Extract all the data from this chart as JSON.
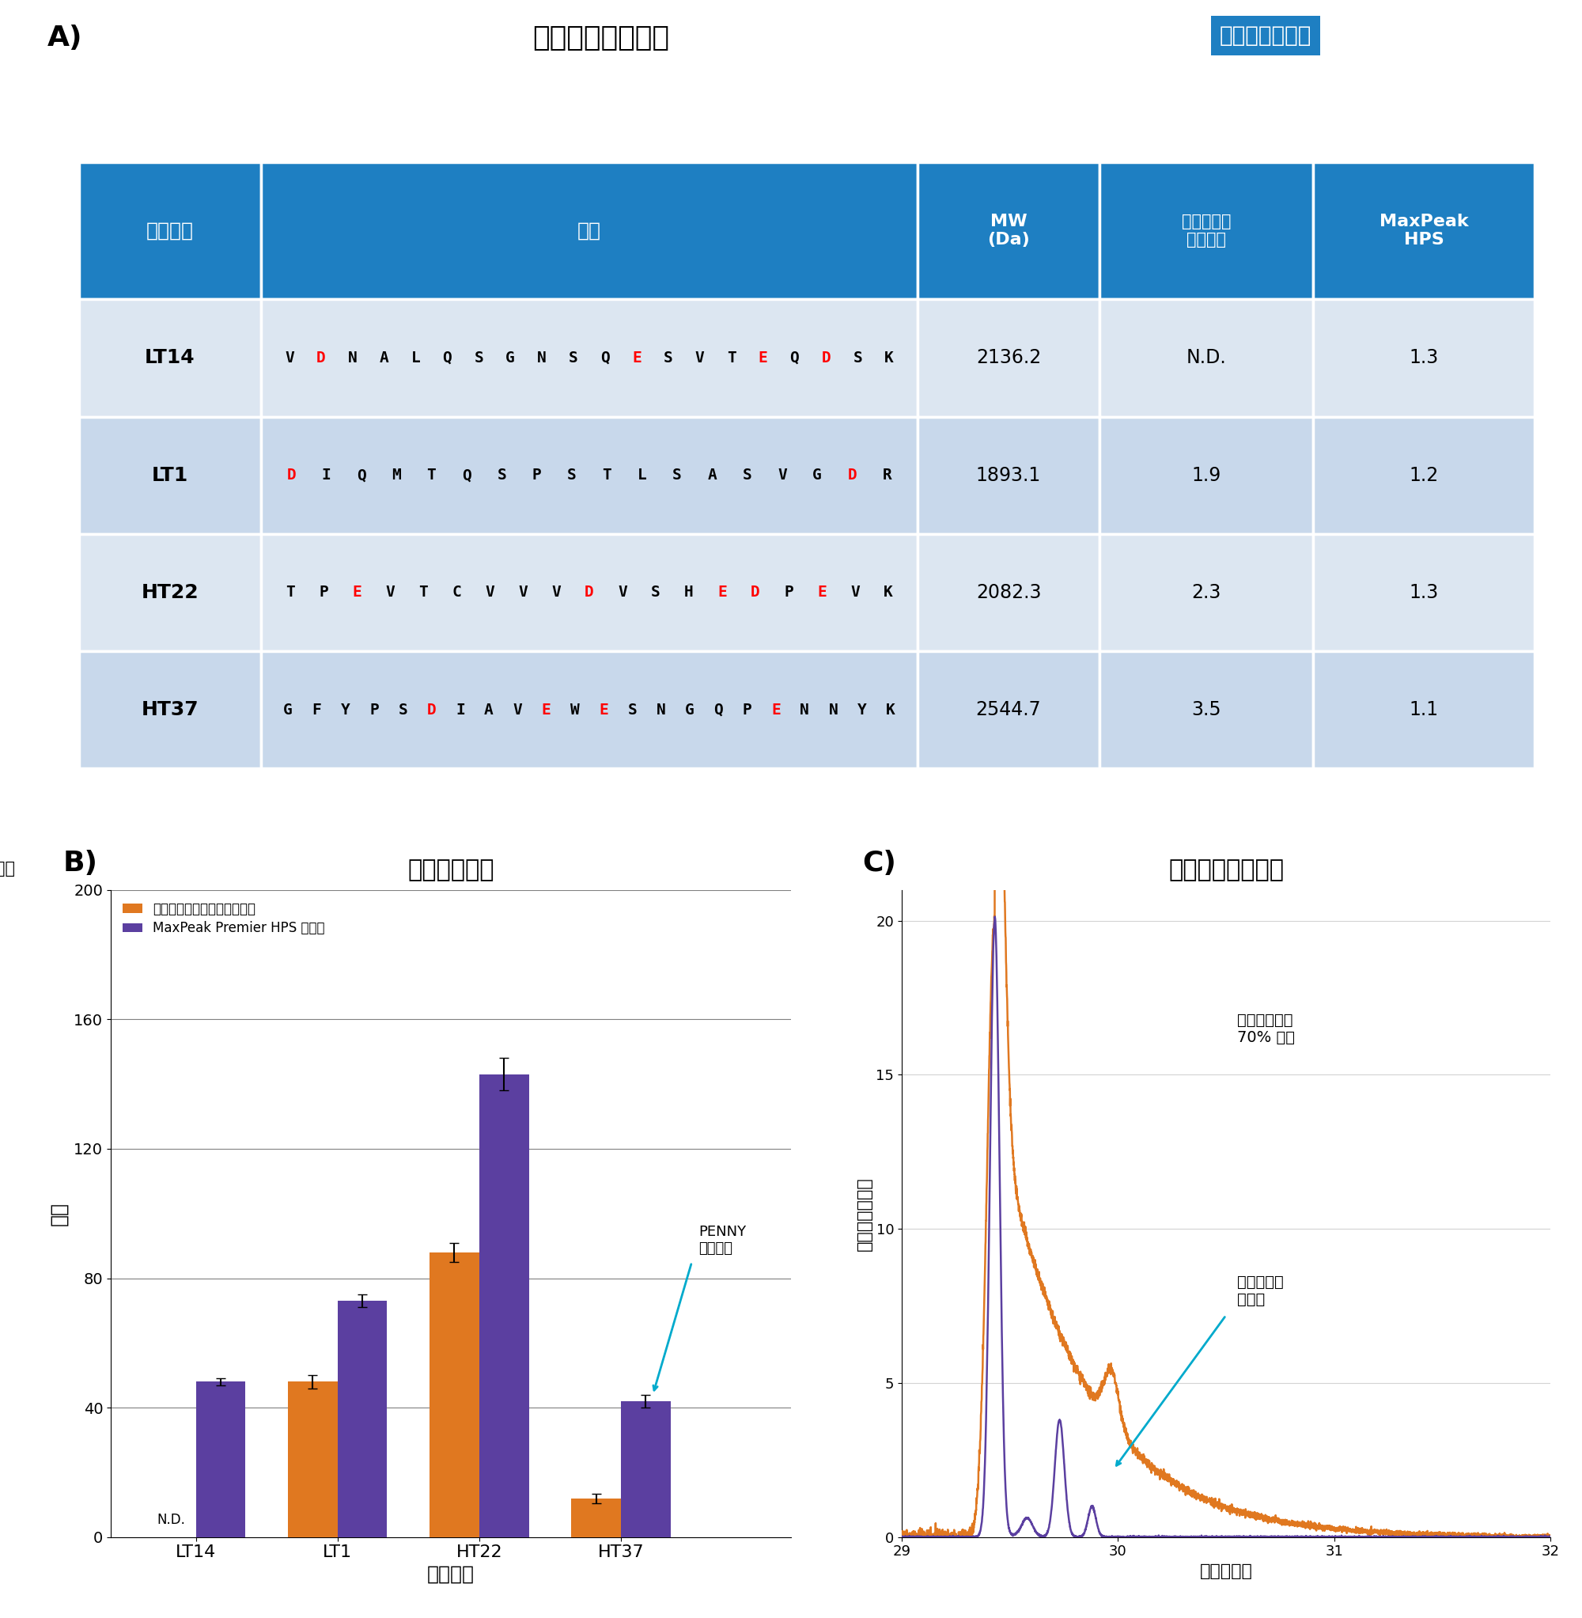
{
  "title_a": "「酸性」ペプチド",
  "tailing_label": "テーリング係数",
  "header_peptide": "ペプチド",
  "header_sequence": "配列",
  "header_mw": "MW\n(Da)",
  "header_ss": "ステンレス\nスチール",
  "header_hps": "MaxPeak\nHPS",
  "peptides": [
    "LT14",
    "LT1",
    "HT22",
    "HT37"
  ],
  "seq_LT14": "VDNALQSGNSQESVTEQDSK",
  "seq_LT1": "DIQMTQSPSTLSASVGDR",
  "seq_HT22": "TPEVTCVVVDVSHEDPEVK",
  "seq_HT37": "GFYPSDIAVEWESNGQPENNYK",
  "red_LT14": [
    1,
    11,
    15,
    17
  ],
  "red_LT1": [
    0,
    16
  ],
  "red_HT22": [
    2,
    9,
    13,
    14,
    16
  ],
  "red_HT37": [
    5,
    9,
    11,
    17
  ],
  "mw": [
    "2136.2",
    "1893.1",
    "2082.3",
    "2544.7"
  ],
  "ss_tailing": [
    "N.D.",
    "1.9",
    "2.3",
    "3.5"
  ],
  "hps_tailing": [
    "1.3",
    "1.2",
    "1.3",
    "1.1"
  ],
  "header_bg": "#1e7fc2",
  "row_bg_light": "#dce6f1",
  "row_bg_mid": "#c8d8eb",
  "title_b": "回収率の向上",
  "title_c": "テーリングの低減",
  "bar_categories": [
    "LT14",
    "LT1",
    "HT22",
    "HT37"
  ],
  "bar_ss": [
    0,
    48,
    88,
    12
  ],
  "bar_hps": [
    48,
    73,
    143,
    42
  ],
  "bar_ss_err": [
    0,
    2,
    3,
    1.5
  ],
  "bar_hps_err": [
    1,
    2,
    5,
    2
  ],
  "bar_ss_color": "#e07820",
  "bar_hps_color": "#5b3fa0",
  "ylabel_b": "面積",
  "ylabel_b2": "百万",
  "xlabel_b": "ペプチド",
  "legend_ss": "ステンレススチール製カラム",
  "legend_hps": "MaxPeak Premier HPS カラム",
  "nd_label": "N.D.",
  "penny_label": "PENNY\nペプチド",
  "annotation_tailing": "テーリングが\n70% 低減",
  "annotation_deamid": "脱アミド化\n不純物",
  "xlabel_c": "時間（分）",
  "ylabel_c": "相対強度（％）",
  "orange_color": "#e07820",
  "purple_color": "#5b3fa0",
  "cyan_color": "#00aacc"
}
